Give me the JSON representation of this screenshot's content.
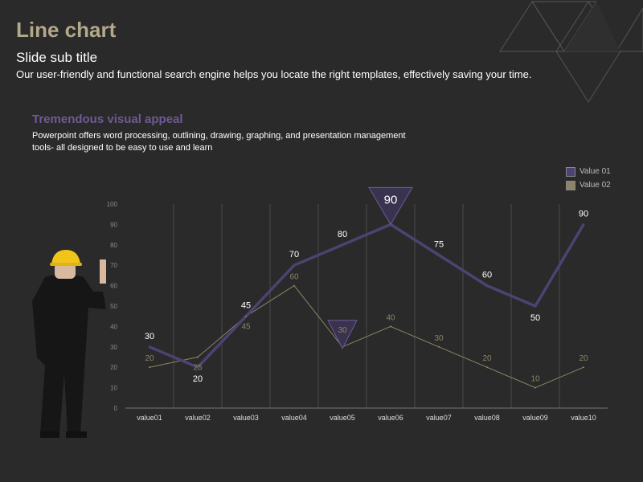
{
  "slide": {
    "title": "Line chart",
    "subtitle": "Slide sub title",
    "description": "Our user-friendly and functional search engine helps you locate the right templates, effectively saving your time.",
    "section_title": "Tremendous visual appeal",
    "section_body": "Powerpoint offers word processing, outlining, drawing, graphing, and presentation management tools- all designed to be easy to use and learn"
  },
  "colors": {
    "series1": "#4e4272",
    "series2": "#8c8466",
    "title": "#b3a88a",
    "accent": "#6e5a96",
    "background": "#2a2a2a"
  },
  "chart_data": {
    "type": "line",
    "categories": [
      "value01",
      "value02",
      "value03",
      "value04",
      "value05",
      "value06",
      "value07",
      "value08",
      "value09",
      "value10"
    ],
    "series": [
      {
        "name": "Value 01",
        "values": [
          30,
          20,
          45,
          70,
          80,
          90,
          75,
          60,
          50,
          90
        ]
      },
      {
        "name": "Value 02",
        "values": [
          20,
          25,
          45,
          60,
          30,
          40,
          30,
          20,
          10,
          20
        ]
      }
    ],
    "ylim": [
      0,
      100
    ],
    "yticks": [
      0,
      10,
      20,
      30,
      40,
      50,
      60,
      70,
      80,
      90,
      100
    ],
    "grid": "vertical",
    "legend": "top-right",
    "callouts": [
      {
        "series": 0,
        "index": 5,
        "label": "90"
      },
      {
        "series": 1,
        "index": 4,
        "label": "30"
      }
    ]
  }
}
